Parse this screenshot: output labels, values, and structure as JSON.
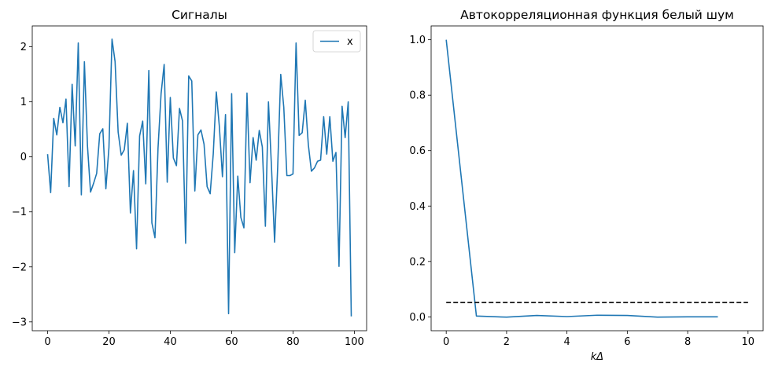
{
  "chart_data": [
    {
      "type": "line",
      "title": "Сигналы",
      "xlabel": "",
      "ylabel": "",
      "xlim": [
        -5,
        104
      ],
      "ylim": [
        -3.16,
        2.38
      ],
      "xticks": [
        0,
        20,
        40,
        60,
        80,
        100
      ],
      "yticks": [
        -3,
        -2,
        -1,
        0,
        1,
        2
      ],
      "grid": false,
      "legend": "top-right",
      "line_color": "#1f77b4",
      "series": [
        {
          "name": "x",
          "x": [
            0,
            1,
            2,
            3,
            4,
            5,
            6,
            7,
            8,
            9,
            10,
            11,
            12,
            13,
            14,
            15,
            16,
            17,
            18,
            19,
            20,
            21,
            22,
            23,
            24,
            25,
            26,
            27,
            28,
            29,
            30,
            31,
            32,
            33,
            34,
            35,
            36,
            37,
            38,
            39,
            40,
            41,
            42,
            43,
            44,
            45,
            46,
            47,
            48,
            49,
            50,
            51,
            52,
            53,
            54,
            55,
            56,
            57,
            58,
            59,
            60,
            61,
            62,
            63,
            64,
            65,
            66,
            67,
            68,
            69,
            70,
            71,
            72,
            73,
            74,
            75,
            76,
            77,
            78,
            79,
            80,
            81,
            82,
            83,
            84,
            85,
            86,
            87,
            88,
            89,
            90,
            91,
            92,
            93,
            94,
            95,
            96,
            97,
            98,
            99
          ],
          "values": [
            0.05,
            -0.65,
            0.7,
            0.4,
            0.9,
            0.62,
            1.05,
            -0.54,
            1.32,
            0.2,
            2.07,
            -0.69,
            1.73,
            0.2,
            -0.64,
            -0.48,
            -0.3,
            0.42,
            0.51,
            -0.58,
            0.17,
            2.14,
            1.73,
            0.45,
            0.03,
            0.13,
            0.61,
            -1.02,
            -0.25,
            -1.67,
            0.38,
            0.65,
            -0.49,
            1.57,
            -1.2,
            -1.47,
            0.16,
            1.15,
            1.68,
            -0.46,
            1.08,
            -0.02,
            -0.16,
            0.88,
            0.65,
            -1.57,
            1.47,
            1.38,
            -0.62,
            0.4,
            0.49,
            0.23,
            -0.54,
            -0.67,
            0.05,
            1.18,
            0.55,
            -0.36,
            0.77,
            -2.85,
            1.15,
            -1.74,
            -0.35,
            -1.1,
            -1.29,
            1.16,
            -0.47,
            0.35,
            -0.06,
            0.48,
            0.18,
            -1.26,
            1.0,
            -0.2,
            -1.55,
            -0.2,
            1.5,
            0.9,
            -0.34,
            -0.34,
            -0.31,
            2.07,
            0.39,
            0.44,
            1.03,
            0.22,
            -0.26,
            -0.2,
            -0.08,
            -0.06,
            0.73,
            0.05,
            0.73,
            -0.08,
            0.08,
            -1.99,
            0.92,
            0.35,
            1.0,
            -2.9
          ]
        }
      ]
    },
    {
      "type": "line",
      "title": "Автокорреляционная функция белый шум",
      "xlabel": "kΔ",
      "ylabel": "",
      "xlim": [
        -0.5,
        10.5
      ],
      "ylim": [
        -0.05,
        1.05
      ],
      "xticks": [
        0,
        2,
        4,
        6,
        8,
        10
      ],
      "yticks": [
        0.0,
        0.2,
        0.4,
        0.6,
        0.8,
        1.0
      ],
      "grid": false,
      "legend": "none",
      "line_color": "#1f77b4",
      "threshold_color": "#000000",
      "series": [
        {
          "name": "",
          "x": [
            0,
            1,
            2,
            3,
            4,
            5,
            6,
            7,
            8,
            9
          ],
          "values": [
            1.0,
            0.003,
            -0.001,
            0.005,
            0.001,
            0.006,
            0.005,
            -0.001,
            0.0,
            0.0
          ]
        }
      ],
      "threshold": {
        "x": [
          0,
          10
        ],
        "y": 0.052,
        "style": "dashed"
      }
    }
  ]
}
